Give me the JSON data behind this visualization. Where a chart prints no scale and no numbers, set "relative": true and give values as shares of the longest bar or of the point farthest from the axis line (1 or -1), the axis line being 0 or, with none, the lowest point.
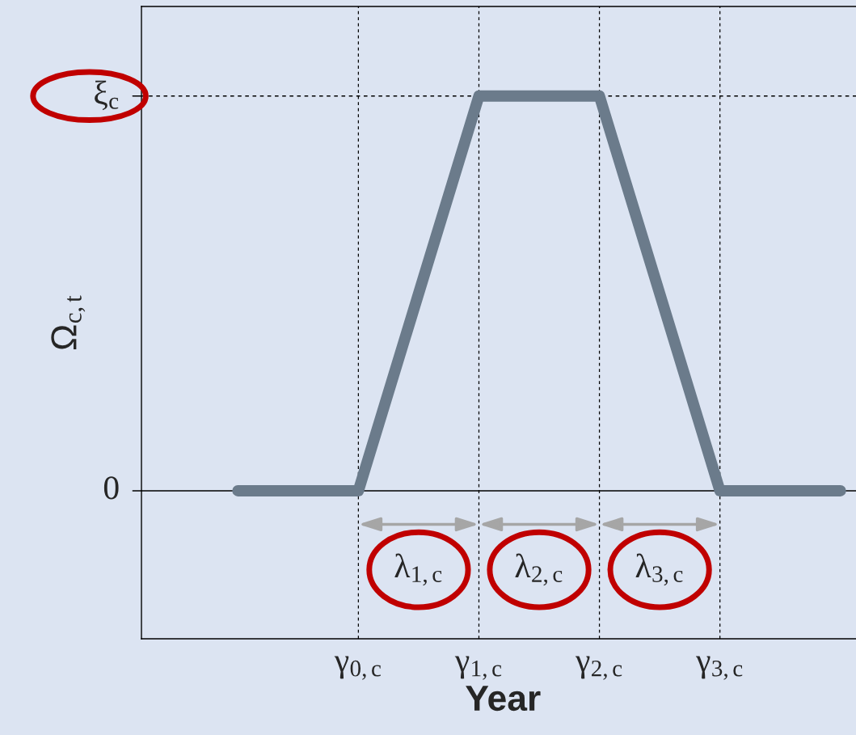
{
  "chart_data": {
    "type": "line",
    "relative": true,
    "xlabel": "Year",
    "ylabel": "Ω$_{c,t}$",
    "categories": [
      null,
      "γ$_{0,c}$",
      "γ$_{1,c}$",
      "γ$_{2,c}$",
      "γ$_{3,c}$",
      null
    ],
    "series": [
      {
        "color": "#6b7b8b",
        "values": [
          0,
          0,
          1,
          1,
          0,
          0
        ]
      }
    ],
    "grid": "x",
    "line_style": "solid",
    "ref_lines": [
      {
        "axis": "y",
        "value": 0,
        "label": "0",
        "color": "#000000",
        "line_style": "solid"
      },
      {
        "axis": "y",
        "value": 1,
        "label": "ξ$_{c}$",
        "color": "#000000",
        "line_style": "dashed"
      }
    ],
    "annotations": [
      "λ$_{1,c}$",
      "λ$_{2,c}$",
      "λ$_{3,c}$"
    ]
  }
}
